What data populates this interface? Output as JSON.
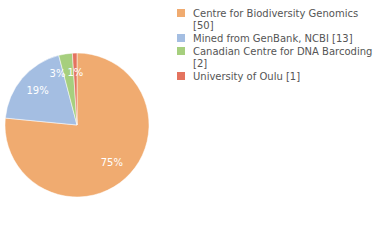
{
  "chart_data": {
    "type": "pie",
    "categories": [
      "Centre for Biodiversity Genomics [50]",
      "Mined from GenBank, NCBI [13]",
      "Canadian Centre for DNA Barcoding [2]",
      "University of Oulu [1]"
    ],
    "values": [
      75,
      19,
      3,
      1
    ],
    "value_labels": [
      "75%",
      "19%",
      "3%",
      "1%"
    ],
    "colors": [
      "#f0ab70",
      "#a4bee2",
      "#a6cf7e",
      "#e4735f"
    ],
    "data_labels": true,
    "legend": "top-right"
  }
}
